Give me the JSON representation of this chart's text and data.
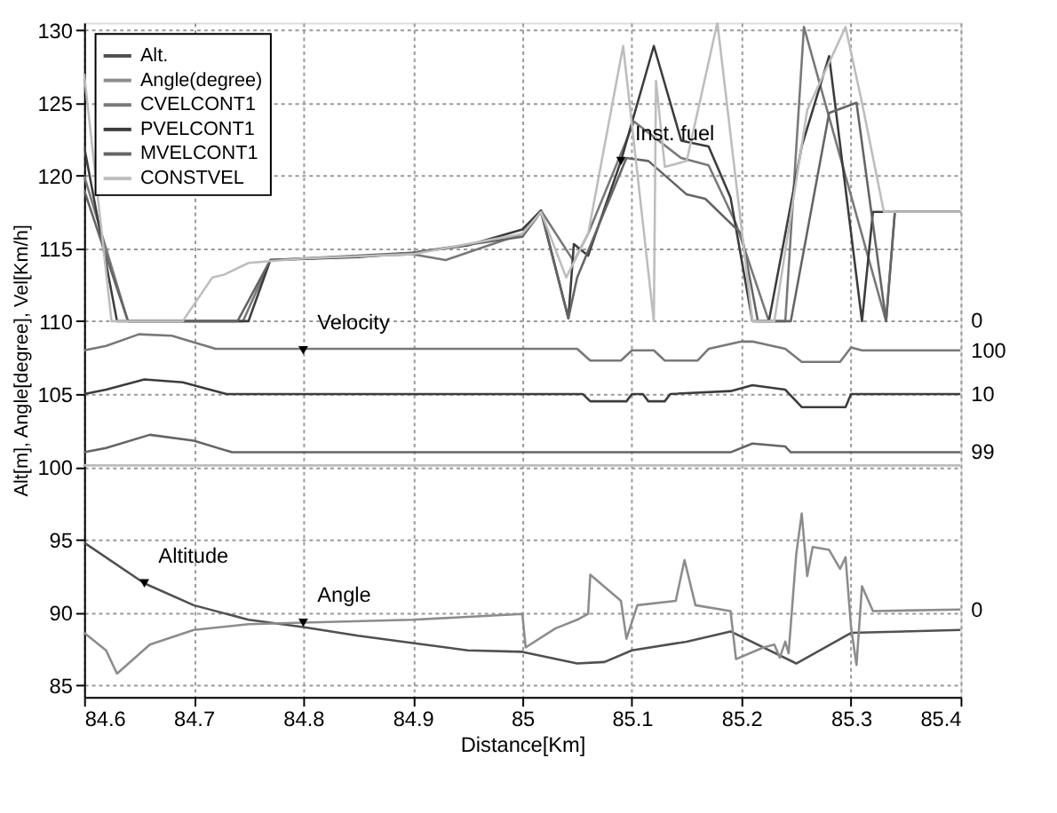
{
  "chart_data": {
    "type": "line",
    "xlabel": "Distance[Km]",
    "ylabel": "Alt[m], Angle[degree], Vel[Km/h]",
    "xlim": [
      84.6,
      85.4
    ],
    "xticks": [
      84.6,
      84.7,
      84.8,
      84.9,
      85,
      85.1,
      85.2,
      85.3,
      85.4
    ],
    "ylim": [
      84.2,
      130.5
    ],
    "yticks": [
      85,
      90,
      95,
      100,
      105,
      110,
      115,
      120,
      125,
      130
    ],
    "grid": true,
    "legend": "top left",
    "marker": "none",
    "line_style": "solid",
    "series": [
      {
        "name": "Alt.",
        "color": "#505050",
        "x": [
          84.6,
          84.655,
          84.7,
          84.75,
          84.8,
          84.85,
          84.9,
          84.95,
          85.0,
          85.05,
          85.075,
          85.1,
          85.15,
          85.19,
          85.25,
          85.3,
          85.4
        ],
        "values": [
          94.8,
          92,
          90.5,
          89.5,
          89,
          88.4,
          87.9,
          87.4,
          87.3,
          86.5,
          86.6,
          87.4,
          88,
          88.7,
          86.5,
          88.6,
          88.8
        ]
      },
      {
        "name": "Angle(degree)",
        "color": "#8c8c8c",
        "x": [
          84.6,
          84.62,
          84.63,
          84.66,
          84.7,
          84.75,
          84.8,
          84.9,
          85.0,
          85.003,
          85.03,
          85.05,
          85.06,
          85.062,
          85.09,
          85.095,
          85.105,
          85.14,
          85.148,
          85.158,
          85.19,
          85.195,
          85.22,
          85.23,
          85.235,
          85.24,
          85.243,
          85.25,
          85.255,
          85.26,
          85.265,
          85.28,
          85.29,
          85.295,
          85.3,
          85.305,
          85.31,
          85.32,
          85.4
        ],
        "values": [
          88.6,
          87.4,
          85.8,
          87.8,
          88.8,
          89.2,
          89.3,
          89.5,
          89.9,
          87.6,
          88.9,
          89.5,
          89.9,
          92.6,
          90.8,
          88.2,
          90.5,
          90.8,
          93.6,
          90.5,
          90.1,
          86.8,
          87.6,
          87.8,
          86.9,
          88,
          87.2,
          94,
          96.8,
          92.5,
          94.5,
          94.3,
          93,
          93.8,
          89,
          86.4,
          91.8,
          90.1,
          90.2
        ]
      },
      {
        "name": "CVELCONT1",
        "color": "#787878",
        "x": [
          84.6,
          84.64,
          84.745,
          84.77,
          84.9,
          84.93,
          85.0,
          85.017,
          85.047,
          85.06,
          85.102,
          85.145,
          85.17,
          85.195,
          85.225,
          85.24,
          85.257,
          85.332,
          85.34,
          85.4
        ],
        "values": [
          120,
          110,
          110,
          114.2,
          114.6,
          114.2,
          116,
          117.6,
          114.1,
          116,
          123.7,
          121.2,
          120.7,
          116.7,
          110,
          110,
          130.2,
          110,
          117.5,
          117.5
        ]
      },
      {
        "name": "PVELCONT1",
        "color": "#3c3c3c",
        "x": [
          84.6,
          84.63,
          84.75,
          84.77,
          84.85,
          84.9,
          84.95,
          85.0,
          85.017,
          85.042,
          85.047,
          85.06,
          85.09,
          85.12,
          85.145,
          85.17,
          85.19,
          85.21,
          85.225,
          85.255,
          85.28,
          85.31,
          85.32,
          85.4
        ],
        "values": [
          122,
          110,
          110,
          114.2,
          114.4,
          114.7,
          115.2,
          116.3,
          117.6,
          110.2,
          115.3,
          114.5,
          121,
          128.9,
          122.4,
          122,
          118.5,
          110,
          110,
          122,
          128.2,
          110,
          117.5,
          117.5
        ]
      },
      {
        "name": "MVELCONT1",
        "color": "#646464",
        "x": [
          84.6,
          84.64,
          84.74,
          84.77,
          84.9,
          85.0,
          85.017,
          85.042,
          85.05,
          85.095,
          85.115,
          85.15,
          85.167,
          85.2,
          85.215,
          85.245,
          85.28,
          85.305,
          85.332,
          85.34,
          85.4
        ],
        "values": [
          119,
          110,
          110,
          114.2,
          114.7,
          115.8,
          117.5,
          110.2,
          113,
          121.2,
          121,
          118.7,
          118.4,
          116,
          110,
          110,
          124.3,
          125,
          110,
          117.5,
          117.5
        ]
      },
      {
        "name": "CONSTVEL",
        "color": "#bdbdbd",
        "x": [
          84.6,
          84.625,
          84.69,
          84.717,
          84.728,
          84.75,
          84.8,
          84.9,
          85.0,
          85.017,
          85.04,
          85.06,
          85.092,
          85.12,
          85.122,
          85.13,
          85.15,
          85.178,
          85.21,
          85.23,
          85.26,
          85.295,
          85.31,
          85.33,
          85.4
        ],
        "values": [
          127,
          110,
          110,
          113,
          113.2,
          114,
          114.3,
          114.6,
          116,
          117.5,
          113,
          116,
          128.9,
          110,
          126.5,
          120.6,
          121,
          130.5,
          110,
          110,
          124.5,
          130.2,
          125,
          117.5,
          117.5
        ]
      },
      {
        "color": "#787878",
        "x": [
          84.6,
          84.62,
          84.65,
          84.68,
          84.72,
          85.05,
          85.062,
          85.09,
          85.1,
          85.12,
          85.13,
          85.16,
          85.17,
          85.2,
          85.21,
          85.24,
          85.255,
          85.29,
          85.3,
          85.31,
          85.4
        ],
        "values": [
          108,
          108.3,
          109.1,
          109,
          108.1,
          108.1,
          107.3,
          107.3,
          108,
          108,
          107.3,
          107.3,
          108.1,
          108.6,
          108.6,
          108.1,
          107.2,
          107.2,
          108.2,
          108,
          108
        ]
      },
      {
        "color": "#3c3c3c",
        "x": [
          84.6,
          84.62,
          84.655,
          84.69,
          84.73,
          85.055,
          85.062,
          85.095,
          85.1,
          85.11,
          85.115,
          85.13,
          85.135,
          85.19,
          85.21,
          85.24,
          85.255,
          85.295,
          85.3,
          85.4
        ],
        "values": [
          105,
          105.3,
          106,
          105.8,
          105,
          105,
          104.5,
          104.5,
          105,
          105,
          104.5,
          104.5,
          105,
          105.2,
          105.6,
          105.3,
          104.1,
          104.1,
          105,
          105
        ]
      },
      {
        "color": "#646464",
        "x": [
          84.6,
          84.62,
          84.66,
          84.7,
          84.735,
          85.19,
          85.21,
          85.24,
          85.245,
          85.4
        ],
        "values": [
          101,
          101.3,
          102.2,
          101.8,
          101,
          101,
          101.6,
          101.4,
          101,
          101
        ]
      },
      {
        "color": "#bdbdbd",
        "x": [
          84.6,
          85.4
        ],
        "values": [
          100.1,
          100.1
        ]
      }
    ],
    "annotations": [
      {
        "text": "Inst. fuel",
        "x": 85.09,
        "y": 121
      },
      {
        "text": "Velocity",
        "x": 84.8,
        "y": 108
      },
      {
        "text": "Altitude",
        "x": 84.655,
        "y": 92
      },
      {
        "text": "Angle",
        "x": 84.8,
        "y": 89.3
      },
      "0",
      {
        "text": "100",
        "x": 85.4,
        "y": 108
      },
      {
        "text": "10",
        "x": 85.4,
        "y": 105
      },
      {
        "text": "99",
        "x": 85.4,
        "y": 101
      },
      {
        "text": "0",
        "x": 85.4,
        "y": 90.2
      }
    ]
  }
}
